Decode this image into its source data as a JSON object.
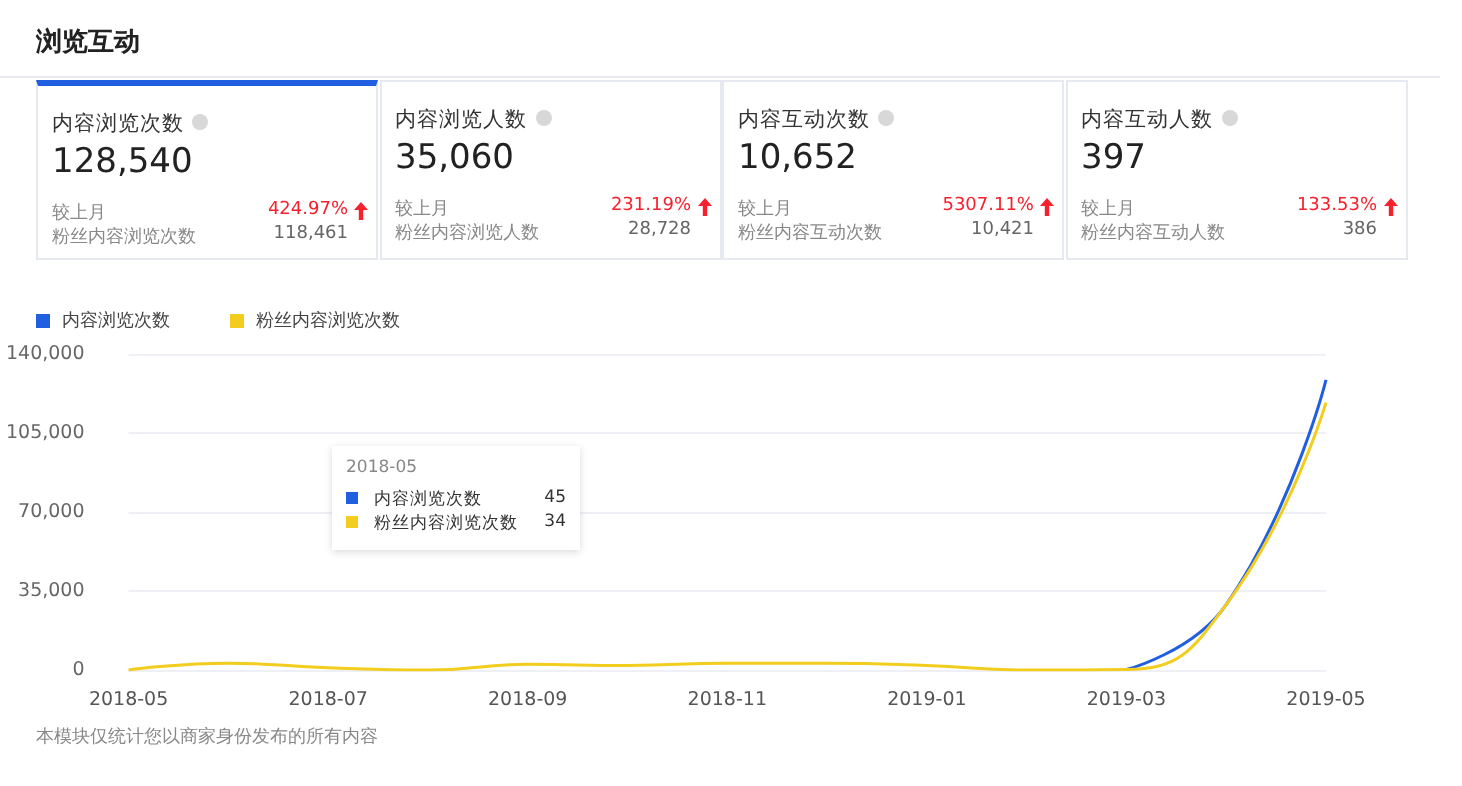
{
  "chart_data": [
    {
      "type": "other",
      "title": "浏览互动",
      "annotations": [
        "内容浏览次数",
        "128,540",
        "较上月",
        "424.97%",
        "粉丝内容浏览次数",
        "118,461",
        "内容浏览人数",
        "35,060",
        "较上月",
        "231.19%",
        "粉丝内容浏览人数",
        "28,728",
        "内容互动次数",
        "10,652",
        "较上月",
        "5307.11%",
        "粉丝内容互动次数",
        "10,421",
        "内容互动人数",
        "397",
        "较上月",
        "133.53%",
        "粉丝内容互动人数",
        "386"
      ]
    },
    {
      "type": "line",
      "categories": [
        "2018-05",
        null,
        "2018-07",
        null,
        "2018-09",
        null,
        "2018-11",
        null,
        "2019-01",
        null,
        "2019-03",
        null,
        "2019-05"
      ],
      "series": [
        {
          "name": "内容浏览次数",
          "color": "#1f5fe0",
          "values": [
            null,
            null,
            null,
            null,
            null,
            null,
            null,
            null,
            null,
            null,
            200,
            29000,
            128540
          ]
        },
        {
          "name": "粉丝内容浏览次数",
          "color": "#f2cd1e",
          "values": [
            0,
            3000,
            1000,
            0,
            2500,
            2000,
            3000,
            3000,
            2000,
            0,
            200,
            29000,
            118461
          ]
        }
      ],
      "ylim": [
        0,
        140000
      ],
      "yticks": [
        0,
        {
          "value": 35000,
          "label": "35,000"
        },
        {
          "value": 70000,
          "label": "70,000"
        },
        {
          "value": 105000,
          "label": "105,000"
        },
        {
          "value": 140000,
          "label": "140,000"
        }
      ],
      "grid": "y",
      "legend": "top left",
      "marker": "none",
      "line_style": "solid",
      "annotations": [
        "2018-05",
        "45",
        "34",
        "本模块仅统计您以商家身份发布的所有内容"
      ]
    }
  ]
}
